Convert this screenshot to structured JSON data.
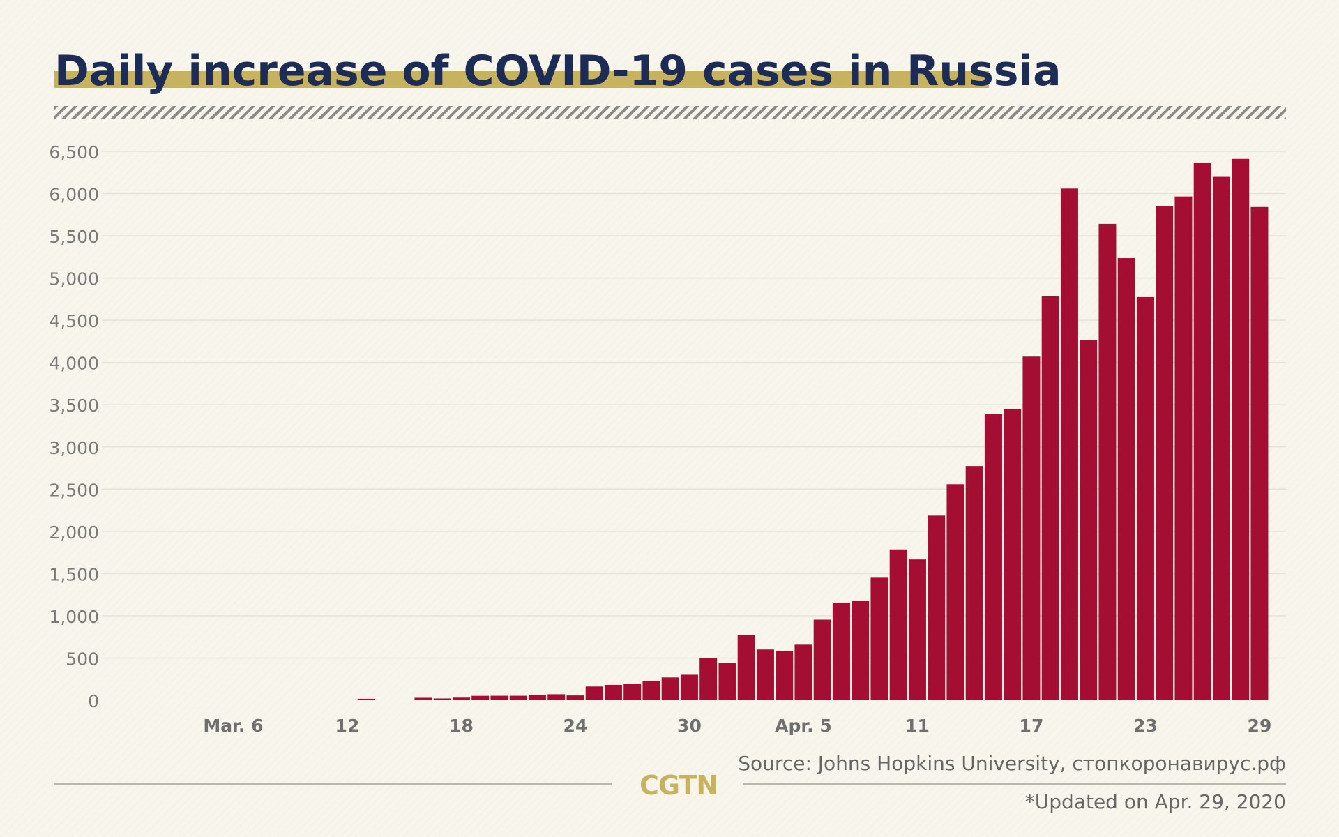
{
  "title": "Daily increase of COVID-19 cases in Russia",
  "source": "Source: Johns Hopkins University, стопкоронавирус.рф",
  "updated": "*Updated on Apr. 29, 2020",
  "logo": "CGTN",
  "colors": {
    "bar": "#a50e33",
    "title": "#1d2c55",
    "accent": "#c7b260",
    "axis_text": "#7a7a7a",
    "background": "#f8f6ec"
  },
  "chart_data": {
    "type": "bar",
    "x": [
      "Mar. 3",
      "Mar. 4",
      "Mar. 5",
      "Mar. 6",
      "Mar. 7",
      "Mar. 8",
      "Mar. 9",
      "Mar. 10",
      "Mar. 11",
      "Mar. 12",
      "Mar. 13",
      "Mar. 14",
      "Mar. 15",
      "Mar. 16",
      "Mar. 17",
      "Mar. 18",
      "Mar. 19",
      "Mar. 20",
      "Mar. 21",
      "Mar. 22",
      "Mar. 23",
      "Mar. 24",
      "Mar. 25",
      "Mar. 26",
      "Mar. 27",
      "Mar. 28",
      "Mar. 29",
      "Mar. 30",
      "Mar. 31",
      "Apr. 1",
      "Apr. 2",
      "Apr. 3",
      "Apr. 4",
      "Apr. 5",
      "Apr. 6",
      "Apr. 7",
      "Apr. 8",
      "Apr. 9",
      "Apr. 10",
      "Apr. 11",
      "Apr. 12",
      "Apr. 13",
      "Apr. 14",
      "Apr. 15",
      "Apr. 16",
      "Apr. 17",
      "Apr. 18",
      "Apr. 19",
      "Apr. 20",
      "Apr. 21",
      "Apr. 22",
      "Apr. 23",
      "Apr. 24",
      "Apr. 25",
      "Apr. 26",
      "Apr. 27",
      "Apr. 28",
      "Apr. 29"
    ],
    "values": [
      0,
      0,
      0,
      0,
      0,
      0,
      0,
      0,
      0,
      0,
      17,
      0,
      0,
      29,
      21,
      31,
      52,
      53,
      53,
      62,
      71,
      57,
      163,
      182,
      196,
      228,
      270,
      302,
      500,
      440,
      771,
      601,
      582,
      658,
      954,
      1154,
      1175,
      1459,
      1786,
      1667,
      2186,
      2558,
      2774,
      3388,
      3448,
      4070,
      4785,
      6060,
      4268,
      5642,
      5236,
      4774,
      5849,
      5966,
      6361,
      6198,
      6411,
      5841
    ],
    "tick_labels": [
      "Mar. 6",
      "12",
      "18",
      "24",
      "30",
      "Apr. 5",
      "11",
      "17",
      "23",
      "29"
    ],
    "y_ticks": [
      "0",
      "500",
      "1,000",
      "1,500",
      "2,000",
      "2,500",
      "3,000",
      "3,500",
      "4,000",
      "4,500",
      "5,000",
      "5,500",
      "6,000",
      "6,500"
    ],
    "ylim": [
      0,
      6500
    ],
    "grid": true,
    "title": "Daily increase of COVID-19 cases in Russia",
    "xlabel": "",
    "ylabel": ""
  }
}
